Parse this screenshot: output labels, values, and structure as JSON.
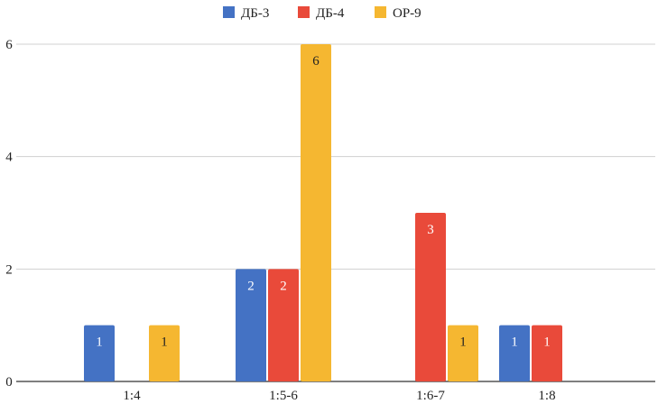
{
  "chart_data": {
    "type": "bar",
    "title": "",
    "xlabel": "",
    "ylabel": "",
    "categories": [
      "1:4",
      "1:5-6",
      "1:6-7",
      "1:8"
    ],
    "ylim": [
      0,
      6
    ],
    "yticks": [
      0,
      2,
      4,
      6
    ],
    "grid": true,
    "legend_position": "top-center",
    "series": [
      {
        "name": "ДБ-3",
        "color": "#4472c4",
        "values": [
          1,
          2,
          0,
          1
        ]
      },
      {
        "name": "ДБ-4",
        "color": "#e94a3a",
        "values": [
          0,
          2,
          3,
          1
        ]
      },
      {
        "name": "ОР-9",
        "color": "#f5b731",
        "values": [
          1,
          6,
          1,
          0
        ]
      }
    ],
    "data_label_colors": [
      "#ffffff",
      "#ffffff",
      "#222222"
    ]
  }
}
